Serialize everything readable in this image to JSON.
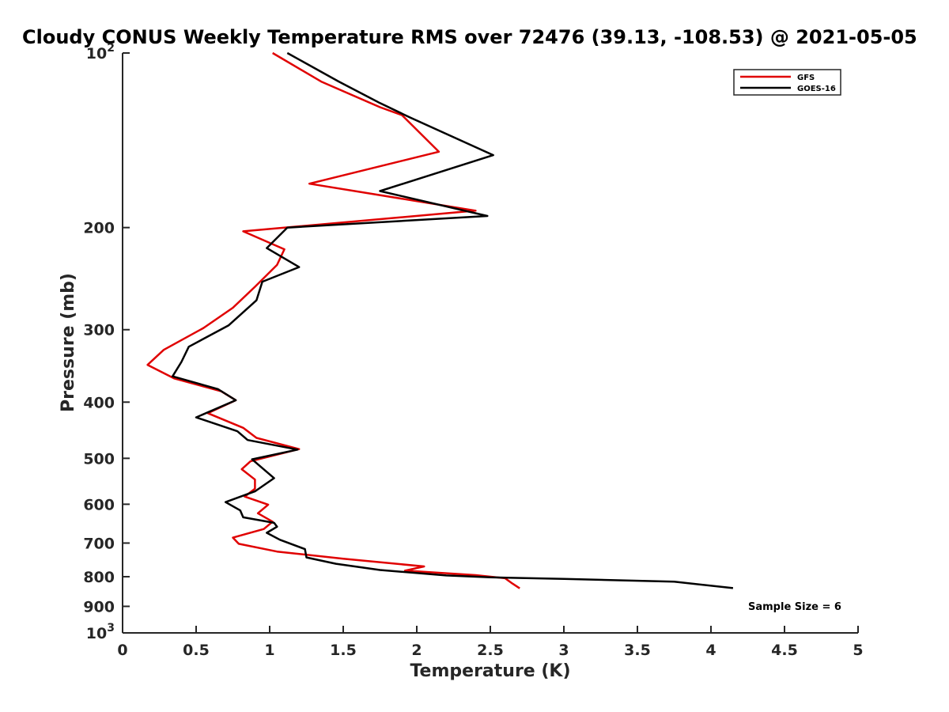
{
  "chart_data": {
    "type": "line",
    "title": "Cloudy CONUS Weekly Temperature RMS over 72476 (39.13, -108.53) @ 2021-05-05",
    "xlabel": "Temperature (K)",
    "ylabel": "Pressure (mb)",
    "xlim": [
      0,
      5
    ],
    "ylim": [
      100,
      1000
    ],
    "yscale": "log",
    "y_reversed": true,
    "grid": false,
    "legend_position": "top-right",
    "x_ticks": [
      0,
      0.5,
      1,
      1.5,
      2,
      2.5,
      3,
      3.5,
      4,
      4.5,
      5
    ],
    "x_tick_labels": [
      "0",
      "0.5",
      "1",
      "1.5",
      "2",
      "2.5",
      "3",
      "3.5",
      "4",
      "4.5",
      "5"
    ],
    "y_ticks": [
      100,
      200,
      300,
      400,
      500,
      600,
      700,
      800,
      900,
      1000
    ],
    "y_tick_labels": [
      {
        "base": "10",
        "exp": "2"
      },
      {
        "base": "200"
      },
      {
        "base": "300"
      },
      {
        "base": "400"
      },
      {
        "base": "500"
      },
      {
        "base": "600"
      },
      {
        "base": "700"
      },
      {
        "base": "800"
      },
      {
        "base": "900"
      },
      {
        "base": "10",
        "exp": "3"
      }
    ],
    "annotation": "Sample Size = 6",
    "series": [
      {
        "name": "GFS",
        "color": "#e00000",
        "points": [
          [
            1.02,
            100
          ],
          [
            1.35,
            112
          ],
          [
            1.75,
            124
          ],
          [
            1.9,
            128
          ],
          [
            2.15,
            148
          ],
          [
            1.27,
            168
          ],
          [
            2.4,
            187
          ],
          [
            0.82,
            203
          ],
          [
            1.1,
            218
          ],
          [
            1.05,
            232
          ],
          [
            0.9,
            253
          ],
          [
            0.75,
            275
          ],
          [
            0.55,
            298
          ],
          [
            0.28,
            325
          ],
          [
            0.17,
            345
          ],
          [
            0.35,
            364
          ],
          [
            0.67,
            383
          ],
          [
            0.77,
            397
          ],
          [
            0.58,
            418
          ],
          [
            0.82,
            443
          ],
          [
            0.91,
            461
          ],
          [
            1.2,
            482
          ],
          [
            0.87,
            506
          ],
          [
            0.81,
            522
          ],
          [
            0.9,
            544
          ],
          [
            0.9,
            564
          ],
          [
            0.83,
            582
          ],
          [
            0.99,
            601
          ],
          [
            0.92,
            622
          ],
          [
            1.02,
            643
          ],
          [
            0.96,
            662
          ],
          [
            0.75,
            685
          ],
          [
            0.79,
            702
          ],
          [
            1.05,
            724
          ],
          [
            1.5,
            745
          ],
          [
            2.05,
            768
          ],
          [
            1.92,
            781
          ],
          [
            2.4,
            795
          ],
          [
            2.6,
            805
          ],
          [
            2.65,
            822
          ],
          [
            2.7,
            838
          ]
        ]
      },
      {
        "name": "GOES-16",
        "color": "#000000",
        "points": [
          [
            1.12,
            100
          ],
          [
            1.47,
            112
          ],
          [
            1.75,
            122
          ],
          [
            1.95,
            129
          ],
          [
            2.52,
            150
          ],
          [
            1.75,
            173
          ],
          [
            2.48,
            191
          ],
          [
            1.12,
            200
          ],
          [
            0.98,
            217
          ],
          [
            1.2,
            234
          ],
          [
            0.95,
            248
          ],
          [
            0.91,
            267
          ],
          [
            0.72,
            295
          ],
          [
            0.45,
            321
          ],
          [
            0.4,
            341
          ],
          [
            0.34,
            361
          ],
          [
            0.65,
            380
          ],
          [
            0.77,
            397
          ],
          [
            0.5,
            425
          ],
          [
            0.78,
            449
          ],
          [
            0.85,
            465
          ],
          [
            1.19,
            483
          ],
          [
            0.88,
            502
          ],
          [
            1.03,
            541
          ],
          [
            0.9,
            570
          ],
          [
            0.7,
            595
          ],
          [
            0.8,
            615
          ],
          [
            0.82,
            632
          ],
          [
            1.03,
            646
          ],
          [
            1.05,
            656
          ],
          [
            0.98,
            672
          ],
          [
            1.07,
            691
          ],
          [
            1.24,
            717
          ],
          [
            1.25,
            741
          ],
          [
            1.45,
            760
          ],
          [
            1.75,
            779
          ],
          [
            2.2,
            796
          ],
          [
            2.5,
            802
          ],
          [
            3.0,
            807
          ],
          [
            3.75,
            816
          ],
          [
            4.15,
            837
          ]
        ]
      }
    ]
  }
}
